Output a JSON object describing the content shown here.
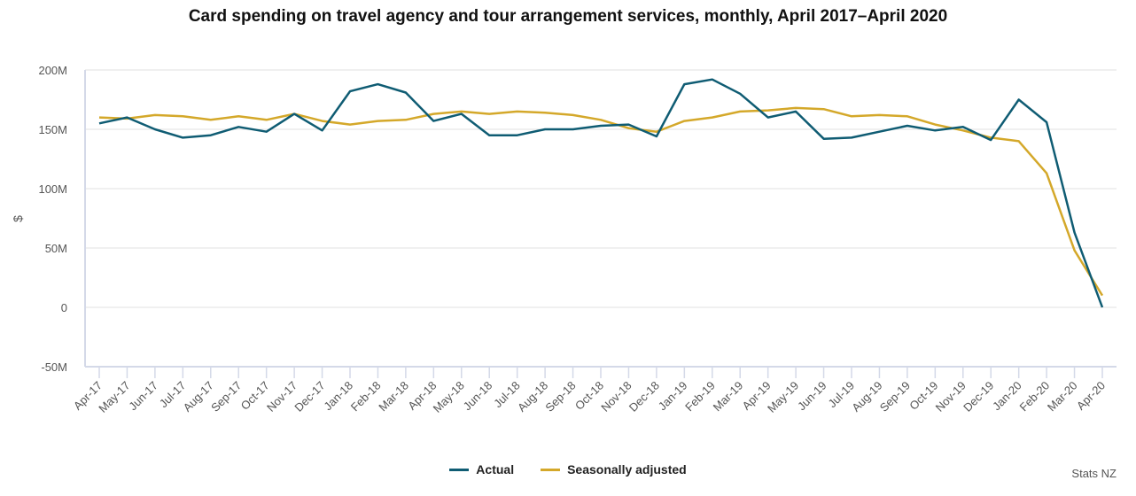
{
  "chart_data": {
    "type": "line",
    "title": "Card spending on travel agency and tour arrangement services, monthly, April 2017–April 2020",
    "xlabel": "",
    "ylabel": "$",
    "ylim": [
      -50,
      200
    ],
    "yunit": "M",
    "yticks": [
      200,
      150,
      100,
      50,
      0,
      -50
    ],
    "ytick_labels": [
      "200M",
      "150M",
      "100M",
      "50M",
      "0",
      "-50M"
    ],
    "grid": true,
    "legend_position": "bottom-center",
    "categories": [
      "Apr-17",
      "May-17",
      "Jun-17",
      "Jul-17",
      "Aug-17",
      "Sep-17",
      "Oct-17",
      "Nov-17",
      "Dec-17",
      "Jan-18",
      "Feb-18",
      "Mar-18",
      "Apr-18",
      "May-18",
      "Jun-18",
      "Jul-18",
      "Aug-18",
      "Sep-18",
      "Oct-18",
      "Nov-18",
      "Dec-18",
      "Jan-19",
      "Feb-19",
      "Mar-19",
      "Apr-19",
      "May-19",
      "Jun-19",
      "Jul-19",
      "Aug-19",
      "Sep-19",
      "Oct-19",
      "Nov-19",
      "Dec-19",
      "Jan-20",
      "Feb-20",
      "Mar-20",
      "Apr-20"
    ],
    "series": [
      {
        "name": "Actual",
        "color": "#0f5c73",
        "values": [
          155,
          160,
          150,
          143,
          145,
          152,
          148,
          163,
          149,
          182,
          188,
          181,
          157,
          163,
          145,
          145,
          150,
          150,
          153,
          154,
          144,
          188,
          192,
          180,
          160,
          165,
          142,
          143,
          148,
          153,
          149,
          152,
          141,
          175,
          156,
          63,
          0
        ]
      },
      {
        "name": "Seasonally adjusted",
        "color": "#d4a82a",
        "values": [
          160,
          159,
          162,
          161,
          158,
          161,
          158,
          163,
          157,
          154,
          157,
          158,
          163,
          165,
          163,
          165,
          164,
          162,
          158,
          151,
          148,
          157,
          160,
          165,
          166,
          168,
          167,
          161,
          162,
          161,
          154,
          149,
          143,
          140,
          113,
          48,
          10
        ]
      }
    ]
  },
  "legend": {
    "items": [
      {
        "label": "Actual",
        "color": "#0f5c73"
      },
      {
        "label": "Seasonally adjusted",
        "color": "#d4a82a"
      }
    ]
  },
  "credit": "Stats NZ"
}
